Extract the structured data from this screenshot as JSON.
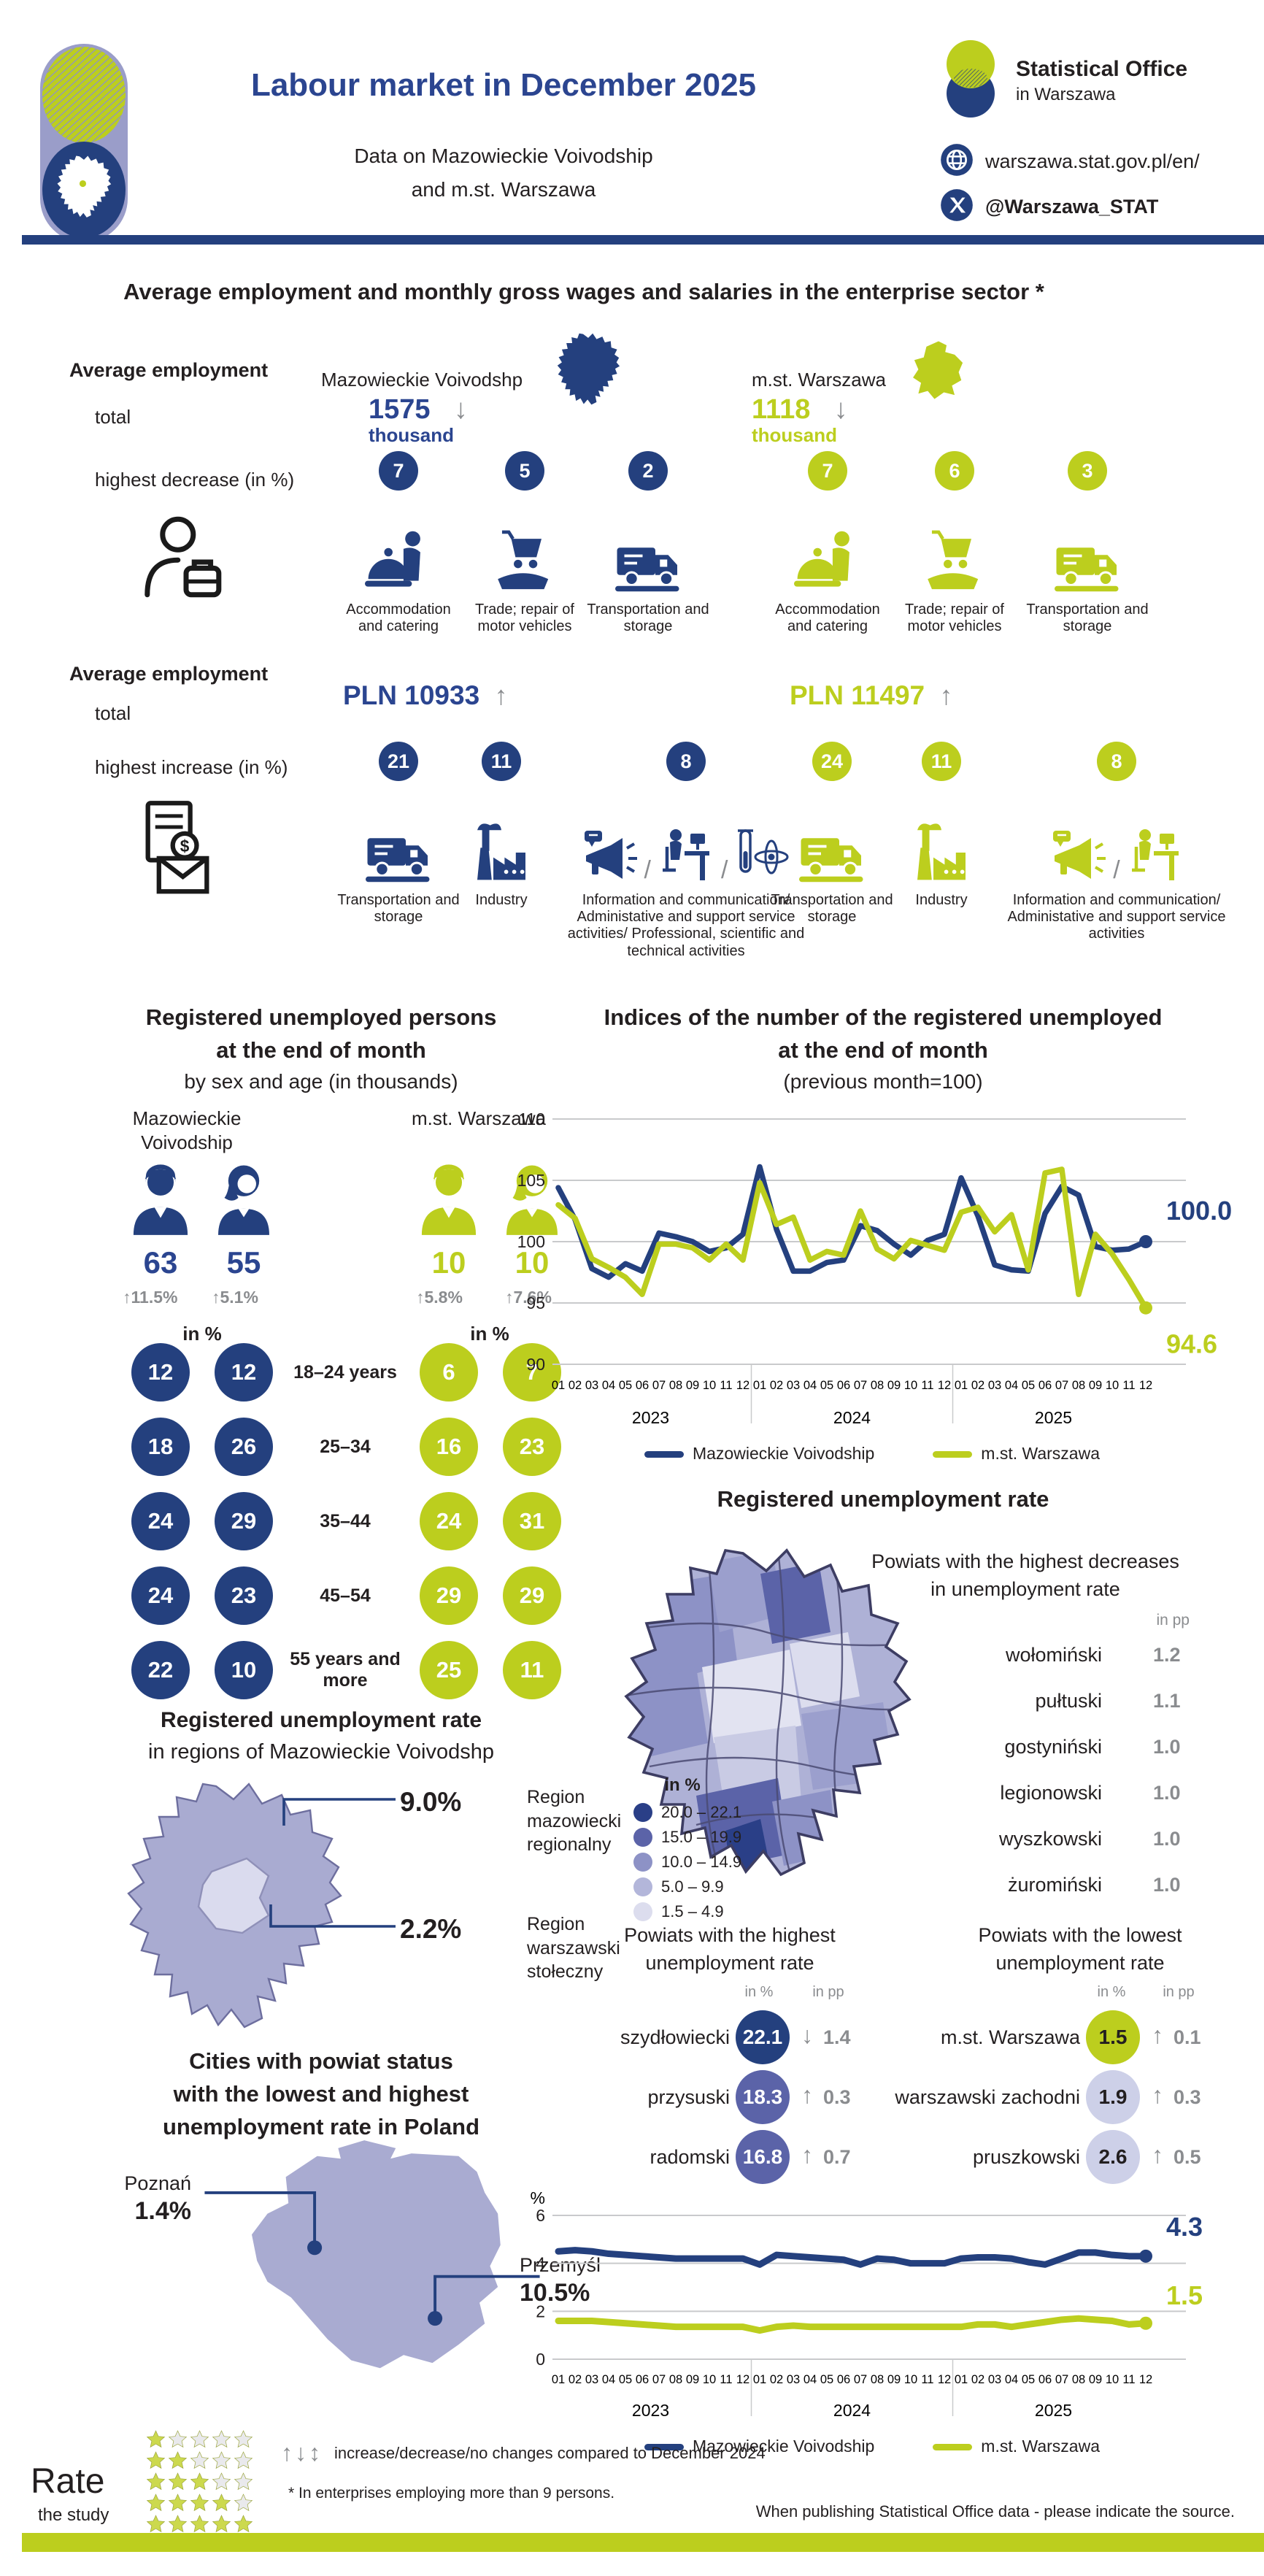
{
  "header": {
    "title": "Labour market in December 2025",
    "subtitle1": "Data on Mazowieckie Voivodship",
    "subtitle2": "and m.st. Warszawa",
    "org1": "Statistical Office",
    "org2": "in Warszawa",
    "website": "warszawa.stat.gov.pl/en/",
    "handle": "@Warszawa_STAT"
  },
  "enterprise": {
    "title": "Average employment and monthly gross wages and salaries in the enterprise sector *",
    "employment": {
      "label": "Average employment",
      "total": "total",
      "metric": "highest decrease (in %)",
      "maz": {
        "region": "Mazowieckie Voivodshp",
        "value": "1575",
        "unit": "thousand",
        "arrow": "↓",
        "sectors": [
          {
            "pct": "7",
            "label": "Accommodation and catering"
          },
          {
            "pct": "5",
            "label": "Trade; repair of motor vehicles"
          },
          {
            "pct": "2",
            "label": "Transportation and storage"
          }
        ]
      },
      "waw": {
        "region": "m.st. Warszawa",
        "value": "1118",
        "unit": "thousand",
        "arrow": "↓",
        "sectors": [
          {
            "pct": "7",
            "label": "Accommodation and catering"
          },
          {
            "pct": "6",
            "label": "Trade; repair of motor vehicles"
          },
          {
            "pct": "3",
            "label": "Transportation and storage"
          }
        ]
      }
    },
    "wages": {
      "label": "Average employment",
      "total": "total",
      "metric": "highest increase (in %)",
      "maz": {
        "value": "PLN 10933",
        "arrow": "↑",
        "sectors": [
          {
            "pct": "21",
            "label": "Transportation and storage"
          },
          {
            "pct": "11",
            "label": "Industry"
          },
          {
            "pct": "8",
            "label": "Information and communication/ Administative and support service activities/ Professional, scientific and technical activities"
          }
        ]
      },
      "waw": {
        "value": "PLN 11497",
        "arrow": "↑",
        "sectors": [
          {
            "pct": "24",
            "label": "Transportation and storage"
          },
          {
            "pct": "11",
            "label": "Industry"
          },
          {
            "pct": "8",
            "label": "Information and communication/ Administative and support service activities"
          }
        ]
      }
    }
  },
  "unemployed": {
    "title1": "Registered unemployed persons",
    "title2": "at the end of month",
    "title3": "by sex and age (in thousands)",
    "maz_header": "Mazowieckie Voivodship",
    "waw_header": "m.st. Warszawa",
    "maz_male": {
      "value": "63",
      "arrow": "↑",
      "change": "11.5%"
    },
    "maz_female": {
      "value": "55",
      "arrow": "↑",
      "change": "5.1%"
    },
    "waw_male": {
      "value": "10",
      "arrow": "↑",
      "change": "5.8%"
    },
    "waw_female": {
      "value": "10",
      "arrow": "↑",
      "change": "7.6%"
    },
    "in_percent": "in %",
    "age_rows": [
      {
        "label": "18–24 years",
        "maz_m": "12",
        "maz_f": "12",
        "waw_m": "6",
        "waw_f": "7"
      },
      {
        "label": "25–34",
        "maz_m": "18",
        "maz_f": "26",
        "waw_m": "16",
        "waw_f": "23"
      },
      {
        "label": "35–44",
        "maz_m": "24",
        "maz_f": "29",
        "waw_m": "24",
        "waw_f": "31"
      },
      {
        "label": "45–54",
        "maz_m": "24",
        "maz_f": "23",
        "waw_m": "29",
        "waw_f": "29"
      },
      {
        "label": "55 years and more",
        "maz_m": "22",
        "maz_f": "10",
        "waw_m": "25",
        "waw_f": "11"
      }
    ]
  },
  "chart_data": [
    {
      "type": "line",
      "title_lines": [
        "Indices of the number of the registered unemployed",
        "at the end of month",
        "(previous month=100)"
      ],
      "month_labels": [
        "01",
        "02",
        "03",
        "04",
        "05",
        "06",
        "07",
        "08",
        "09",
        "10",
        "11",
        "12"
      ],
      "years": [
        "2023",
        "2024",
        "2025"
      ],
      "ylim": [
        90,
        110
      ],
      "yticks": [
        110,
        105,
        100,
        95,
        90
      ],
      "grid": true,
      "legend_position": "bottom",
      "series": [
        {
          "name": "Mazowieckie Voivodship",
          "color": "#24407e",
          "end_label": "100.0",
          "end_dy": -30,
          "values": [
            104.4,
            101.8,
            97.8,
            97.1,
            98.2,
            97.6,
            100.7,
            100.4,
            100.0,
            99.2,
            99.5,
            100.6,
            106.1,
            101.0,
            97.6,
            97.6,
            98.3,
            98.5,
            101.3,
            100.9,
            99.8,
            98.9,
            100.1,
            100.6,
            105.2,
            102.1,
            98.1,
            97.7,
            97.6,
            102.3,
            104.5,
            103.8,
            99.6,
            99.3,
            99.4,
            100.0
          ]
        },
        {
          "name": "m.st. Warszawa",
          "color": "#bcce1e",
          "end_label": "94.6",
          "end_dy": 62,
          "values": [
            103.0,
            101.9,
            98.6,
            97.9,
            97.1,
            95.7,
            99.8,
            99.8,
            99.5,
            98.5,
            99.8,
            98.5,
            104.8,
            101.4,
            102.0,
            98.5,
            99.2,
            98.9,
            102.5,
            99.4,
            98.6,
            100.1,
            99.7,
            99.3,
            102.4,
            102.8,
            100.8,
            102.2,
            97.7,
            105.6,
            105.9,
            95.7,
            100.6,
            99.0,
            96.9,
            94.6
          ]
        }
      ]
    },
    {
      "type": "line",
      "title_lines": [],
      "ylabel": "%",
      "month_labels": [
        "01",
        "02",
        "03",
        "04",
        "05",
        "06",
        "07",
        "08",
        "09",
        "10",
        "11",
        "12"
      ],
      "years": [
        "2023",
        "2024",
        "2025"
      ],
      "ylim": [
        0,
        6
      ],
      "yticks": [
        6,
        4,
        2,
        0
      ],
      "grid": true,
      "legend_position": "bottom",
      "series": [
        {
          "name": "Mazowieckie Voivodship",
          "color": "#24407e",
          "end_label": "4.3",
          "end_dy": -28,
          "values": [
            4.5,
            4.55,
            4.5,
            4.4,
            4.35,
            4.3,
            4.25,
            4.2,
            4.2,
            4.2,
            4.2,
            4.2,
            3.95,
            4.35,
            4.3,
            4.25,
            4.2,
            4.15,
            3.95,
            4.2,
            4.15,
            4.0,
            4.0,
            4.0,
            4.2,
            4.25,
            4.25,
            4.2,
            4.05,
            3.95,
            4.2,
            4.45,
            4.45,
            4.35,
            4.3,
            4.3
          ]
        },
        {
          "name": "m.st. Warszawa",
          "color": "#bcce1e",
          "end_label": "1.5",
          "end_dy": -26,
          "values": [
            1.6,
            1.6,
            1.6,
            1.55,
            1.5,
            1.45,
            1.4,
            1.35,
            1.35,
            1.35,
            1.35,
            1.35,
            1.2,
            1.35,
            1.4,
            1.35,
            1.35,
            1.35,
            1.35,
            1.35,
            1.35,
            1.35,
            1.35,
            1.35,
            1.35,
            1.45,
            1.45,
            1.35,
            1.45,
            1.55,
            1.65,
            1.7,
            1.65,
            1.6,
            1.45,
            1.5
          ]
        }
      ]
    }
  ],
  "rate_map": {
    "title": "Registered unemployment rate",
    "legend_title": "in %",
    "legend": [
      {
        "range": "20.0 – 22.1",
        "color": "#2a3f87"
      },
      {
        "range": "15.0 – 19.9",
        "color": "#5b63a8"
      },
      {
        "range": "10.0 – 14.9",
        "color": "#8d92c6"
      },
      {
        "range": "5.0 –  9.9",
        "color": "#b3b6da"
      },
      {
        "range": "1.5 –  4.9",
        "color": "#dcddee"
      }
    ],
    "decreases": {
      "title1": "Powiats with the highest decreases",
      "title2": "in unemployment rate",
      "unit": "in pp",
      "items": [
        {
          "name": "wołomiński",
          "value": "1.2"
        },
        {
          "name": "pułtuski",
          "value": "1.1"
        },
        {
          "name": "gostyniński",
          "value": "1.0"
        },
        {
          "name": "legionowski",
          "value": "1.0"
        },
        {
          "name": "wyszkowski",
          "value": "1.0"
        },
        {
          "name": "żuromiński",
          "value": "1.0"
        }
      ]
    },
    "highest": {
      "title1": "Powiats with the highest",
      "title2": "unemployment rate",
      "col_pct": "in %",
      "col_pp": "in pp",
      "items": [
        {
          "name": "szydłowiecki",
          "value": "22.1",
          "arrow": "↓",
          "change": "1.4",
          "circle_color": "#24407e",
          "text_color": "#ffffff"
        },
        {
          "name": "przysuski",
          "value": "18.3",
          "arrow": "↑",
          "change": "0.3",
          "circle_color": "#5b63a8",
          "text_color": "#ffffff"
        },
        {
          "name": "radomski",
          "value": "16.8",
          "arrow": "↑",
          "change": "0.7",
          "circle_color": "#5b63a8",
          "text_color": "#ffffff"
        }
      ]
    },
    "lowest": {
      "title1": "Powiats with the lowest",
      "title2": "unemployment rate",
      "col_pct": "in %",
      "col_pp": "in pp",
      "items": [
        {
          "name": "m.st. Warszawa",
          "value": "1.5",
          "arrow": "↑",
          "change": "0.1",
          "circle_color": "#bcce1e",
          "text_color": "#231f20"
        },
        {
          "name": "warszawski zachodni",
          "value": "1.9",
          "arrow": "↑",
          "change": "0.3",
          "circle_color": "#cdd0e8",
          "text_color": "#231f20"
        },
        {
          "name": "pruszkowski",
          "value": "2.6",
          "arrow": "↑",
          "change": "0.5",
          "circle_color": "#cdd0e8",
          "text_color": "#231f20"
        }
      ]
    }
  },
  "regions": {
    "title1": "Registered unemployment rate",
    "title2": "in regions of Mazowieckie Voivodshp",
    "outer_value": "9.0%",
    "outer_label": "Region mazowiecki regionalny",
    "inner_value": "2.2%",
    "inner_label": "Region warszawski stołeczny"
  },
  "cities": {
    "title1": "Cities with powiat status",
    "title2": "with the lowest and highest",
    "title3": "unemployment rate in Poland",
    "low_name": "Poznań",
    "low_value": "1.4%",
    "high_name": "Przemyśl",
    "high_value": "10.5%"
  },
  "footer": {
    "rate1": "Rate",
    "rate2": "the study",
    "star_rows": [
      1,
      2,
      3,
      4,
      5
    ],
    "arrows": "↑↓↕",
    "arrows_note": "increase/decrease/no changes compared to December 2024",
    "asterisk_note": "* In enterprises employing more than 9 persons.",
    "source_note": "When publishing Statistical Office data - please indicate the source."
  }
}
